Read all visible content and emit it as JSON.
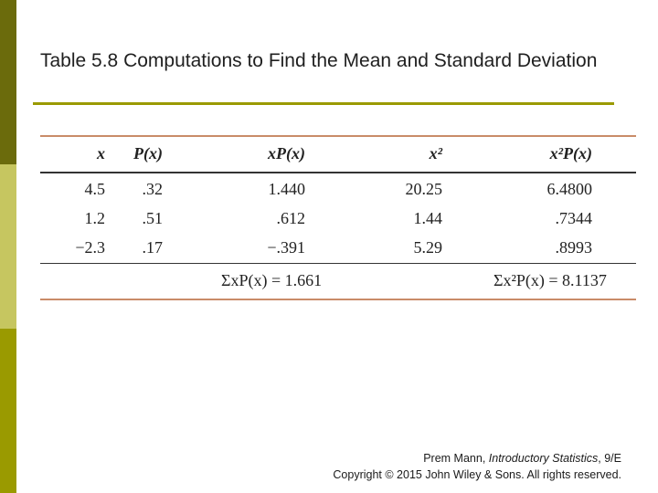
{
  "slide": {
    "title": "Table 5.8 Computations to Find the Mean and Standard Deviation"
  },
  "table": {
    "headers": [
      "x",
      "P(x)",
      "xP(x)",
      "x²",
      "x²P(x)"
    ],
    "rows": [
      [
        "4.5",
        ".32",
        "1.440",
        "20.25",
        "6.4800"
      ],
      [
        "1.2",
        ".51",
        ".612",
        "1.44",
        ".7344"
      ],
      [
        "−2.3",
        ".17",
        "−.391",
        "5.29",
        ".8993"
      ]
    ],
    "sum_mean": "ΣxP(x) = 1.661",
    "sum_var": "Σx²P(x) = 8.1137"
  },
  "credit": {
    "line1_author": "Prem Mann, ",
    "line1_book": "Introductory Statistics",
    "line1_edition": ", 9/E",
    "line2": "Copyright © 2015 John Wiley & Sons. All rights reserved."
  },
  "colors": {
    "sidebar_dark": "#6b6b0c",
    "sidebar_light": "#c6c660",
    "sidebar_mid": "#9a9a00",
    "title_rule": "#9a9a00",
    "table_rule": "#c98b68"
  }
}
